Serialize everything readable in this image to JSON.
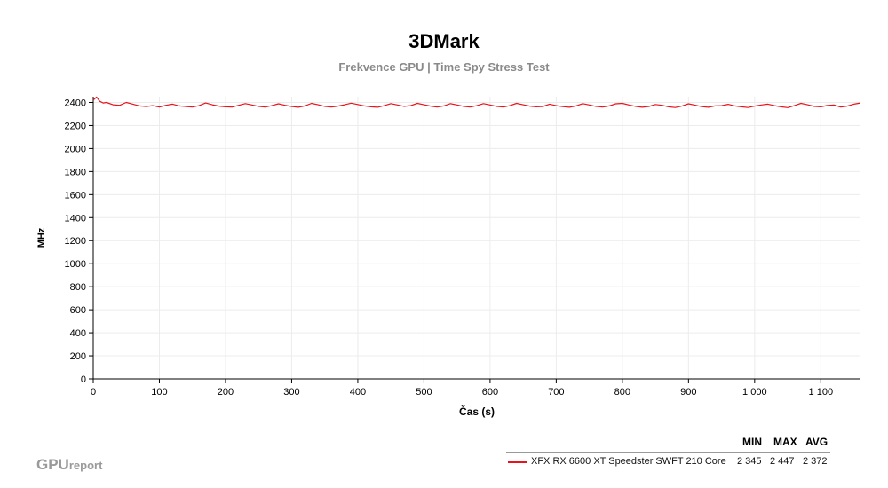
{
  "chart_data": {
    "type": "line",
    "title": "3DMark",
    "subtitle": "Frekvence GPU | Time Spy Stress Test",
    "xlabel": "Čas (s)",
    "ylabel": "MHz",
    "xlim": [
      0,
      1160
    ],
    "ylim": [
      0,
      2450
    ],
    "xticks": [
      0,
      100,
      200,
      300,
      400,
      500,
      600,
      700,
      800,
      900,
      1000,
      1100
    ],
    "xtick_labels": [
      "0",
      "100",
      "200",
      "300",
      "400",
      "500",
      "600",
      "700",
      "800",
      "900",
      "1 000",
      "1 100"
    ],
    "yticks": [
      0,
      200,
      400,
      600,
      800,
      1000,
      1200,
      1400,
      1600,
      1800,
      2000,
      2200,
      2400
    ],
    "ytick_labels": [
      "0",
      "200",
      "400",
      "600",
      "800",
      "1000",
      "1200",
      "1400",
      "1600",
      "1800",
      "2000",
      "2200",
      "2400"
    ],
    "grid": true,
    "legend_position": "bottom-right",
    "series": [
      {
        "name": "XFX RX 6600 XT Speedster SWFT 210 Core",
        "color": "#e8141c",
        "x": [
          0,
          5,
          10,
          15,
          20,
          30,
          40,
          50,
          60,
          70,
          80,
          90,
          100,
          110,
          120,
          130,
          140,
          150,
          160,
          170,
          180,
          190,
          200,
          210,
          220,
          230,
          240,
          250,
          260,
          270,
          280,
          290,
          300,
          310,
          320,
          330,
          340,
          350,
          360,
          370,
          380,
          390,
          400,
          410,
          420,
          430,
          440,
          450,
          460,
          470,
          480,
          490,
          500,
          510,
          520,
          530,
          540,
          550,
          560,
          570,
          580,
          590,
          600,
          610,
          620,
          630,
          640,
          650,
          660,
          670,
          680,
          690,
          700,
          710,
          720,
          730,
          740,
          750,
          760,
          770,
          780,
          790,
          800,
          810,
          820,
          830,
          840,
          850,
          860,
          870,
          880,
          890,
          900,
          910,
          920,
          930,
          940,
          950,
          960,
          970,
          980,
          990,
          1000,
          1010,
          1020,
          1030,
          1040,
          1050,
          1060,
          1070,
          1080,
          1090,
          1100,
          1110,
          1120,
          1130,
          1140,
          1150,
          1160
        ],
        "values": [
          2420,
          2447,
          2410,
          2395,
          2400,
          2380,
          2375,
          2400,
          2385,
          2370,
          2365,
          2372,
          2360,
          2375,
          2385,
          2370,
          2365,
          2360,
          2372,
          2395,
          2380,
          2368,
          2362,
          2360,
          2375,
          2390,
          2378,
          2366,
          2360,
          2372,
          2388,
          2375,
          2365,
          2358,
          2370,
          2392,
          2380,
          2366,
          2360,
          2368,
          2380,
          2394,
          2382,
          2370,
          2362,
          2358,
          2372,
          2390,
          2378,
          2366,
          2372,
          2392,
          2380,
          2368,
          2360,
          2370,
          2390,
          2378,
          2366,
          2360,
          2372,
          2390,
          2378,
          2366,
          2360,
          2372,
          2392,
          2380,
          2368,
          2362,
          2365,
          2385,
          2372,
          2364,
          2358,
          2370,
          2390,
          2378,
          2366,
          2360,
          2370,
          2388,
          2392,
          2378,
          2366,
          2358,
          2365,
          2382,
          2375,
          2362,
          2356,
          2368,
          2388,
          2376,
          2364,
          2358,
          2370,
          2372,
          2384,
          2370,
          2362,
          2356,
          2368,
          2378,
          2385,
          2372,
          2362,
          2355,
          2372,
          2392,
          2380,
          2366,
          2362,
          2374,
          2378,
          2360,
          2368,
          2385,
          2395
        ]
      }
    ]
  },
  "legend": {
    "headers": {
      "min": "MIN",
      "max": "MAX",
      "avg": "AVG"
    },
    "rows": [
      {
        "name": "XFX RX 6600 XT Speedster SWFT 210 Core",
        "min": "2 345",
        "max": "2 447",
        "avg": "2 372"
      }
    ]
  },
  "branding": {
    "main": "GPU",
    "sub": "report"
  }
}
